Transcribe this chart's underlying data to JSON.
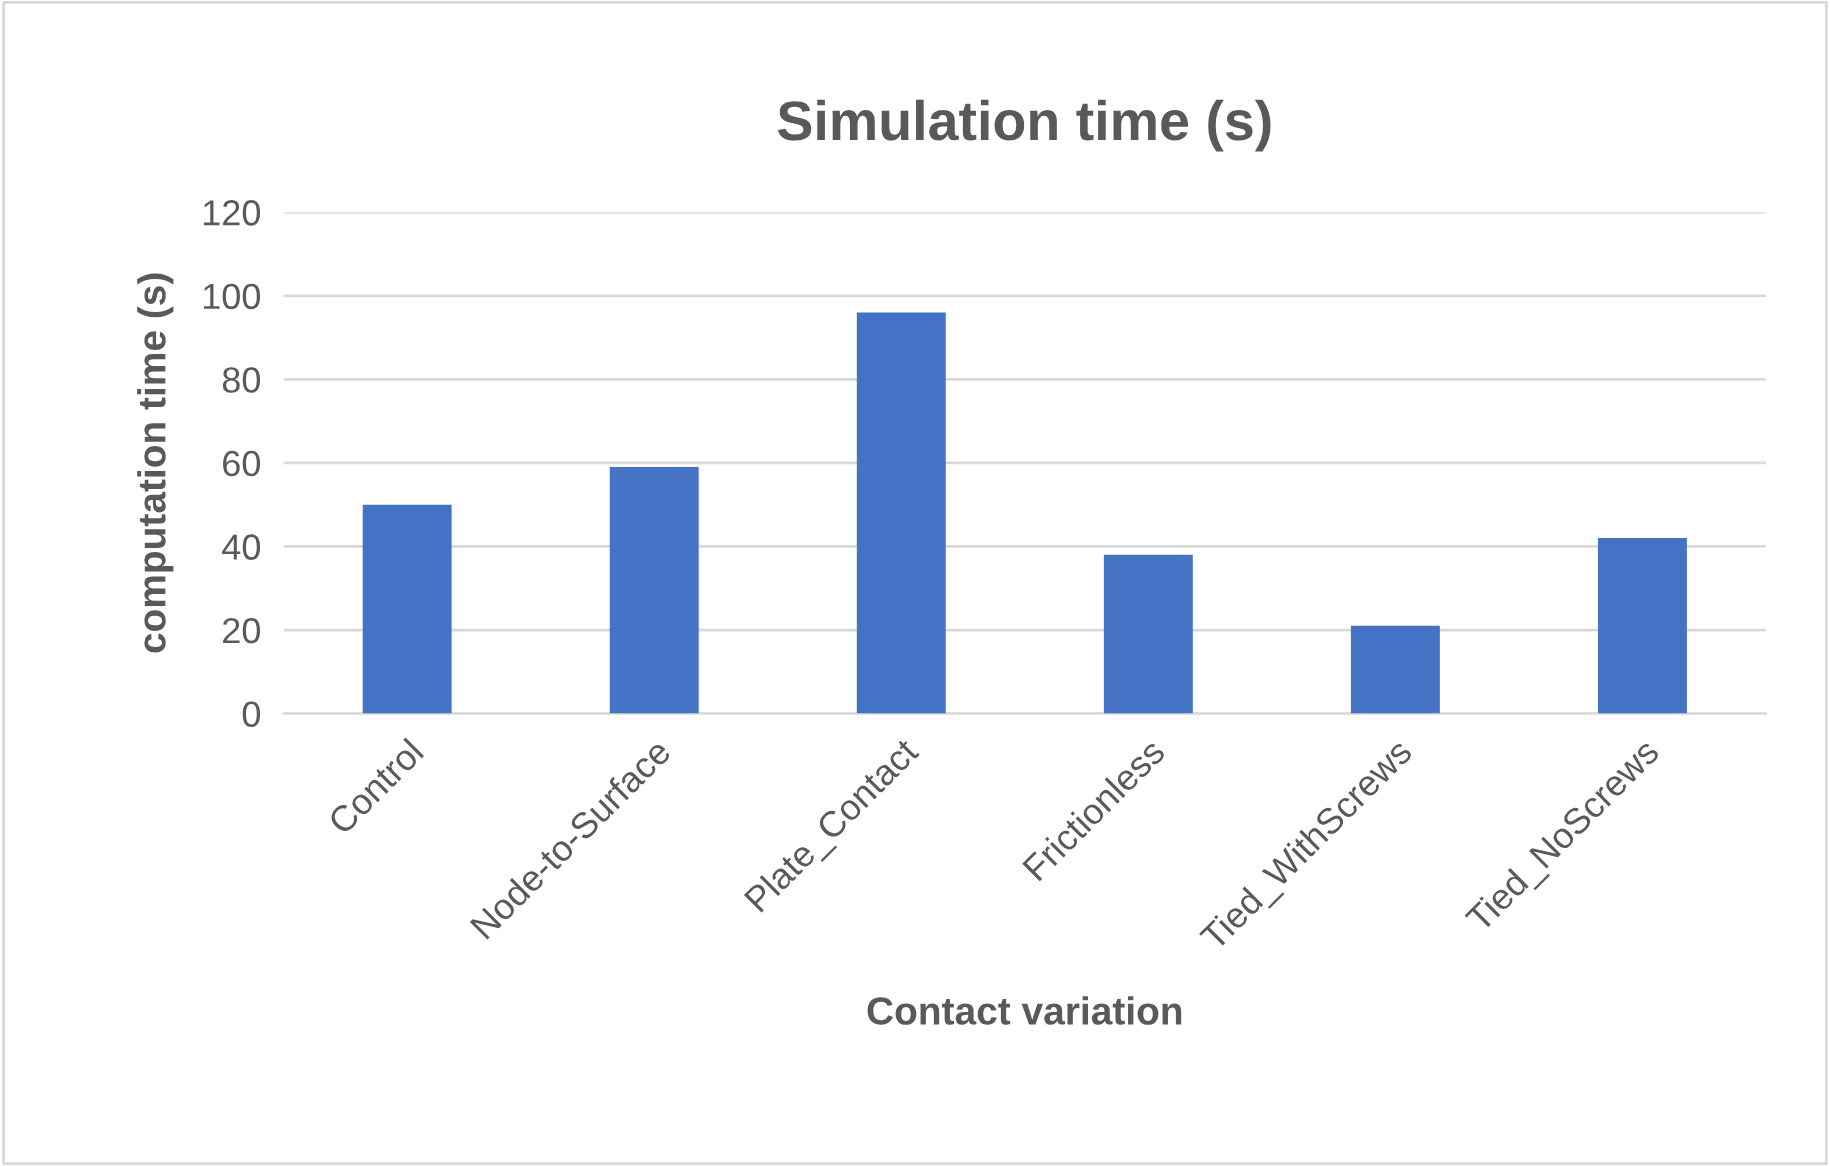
{
  "chart_data": {
    "type": "bar",
    "title": "Simulation time (s)",
    "xlabel": "Contact variation",
    "ylabel": "computation time (s)",
    "categories": [
      "Control",
      "Node-to-Surface",
      "Plate_Contact",
      "Frictionless",
      "Tied_WithScrews",
      "Tied_NoScrews"
    ],
    "values": [
      50,
      59,
      96,
      38,
      21,
      42
    ],
    "color": "#4472c4",
    "ylim": [
      0,
      120
    ],
    "yticks": [
      0,
      20,
      40,
      60,
      80,
      100,
      120
    ],
    "grid": "y",
    "legend": false
  }
}
